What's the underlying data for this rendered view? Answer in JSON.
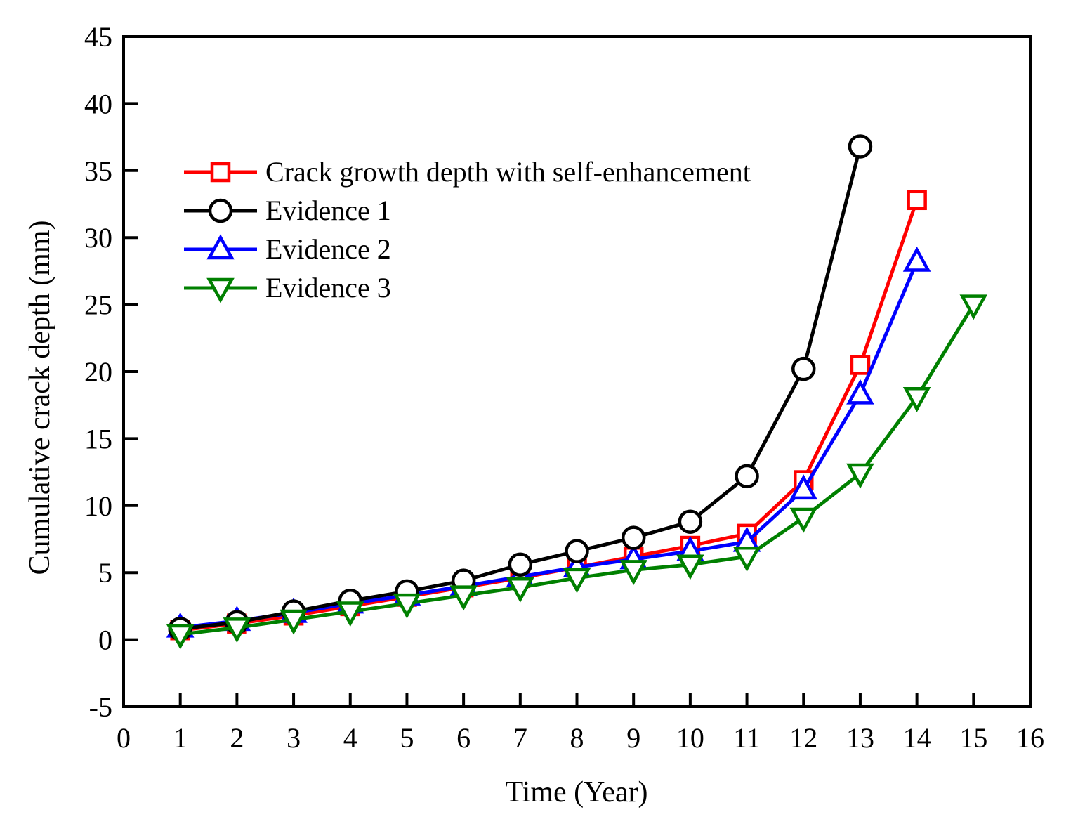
{
  "chart_data": {
    "type": "line",
    "title": "",
    "xlabel": "Time (Year)",
    "ylabel": "Cumulative crack depth (mm)",
    "xlim": [
      0,
      16
    ],
    "ylim": [
      -5,
      45
    ],
    "xticks": [
      0,
      1,
      2,
      3,
      4,
      5,
      6,
      7,
      8,
      9,
      10,
      11,
      12,
      13,
      14,
      15,
      16
    ],
    "yticks": [
      -5,
      0,
      5,
      10,
      15,
      20,
      25,
      30,
      35,
      40,
      45
    ],
    "grid": false,
    "legend_position": "upper-left",
    "series": [
      {
        "name": "Crack growth depth with self-enhancement",
        "color": "#ff0000",
        "marker": "square",
        "x": [
          1,
          2,
          3,
          4,
          5,
          6,
          7,
          8,
          9,
          10,
          11,
          12,
          13,
          14
        ],
        "y": [
          0.7,
          1.2,
          1.8,
          2.5,
          3.2,
          3.9,
          4.6,
          5.4,
          6.2,
          7.0,
          7.9,
          11.9,
          20.5,
          32.8
        ]
      },
      {
        "name": "Evidence 1",
        "color": "#000000",
        "marker": "circle",
        "x": [
          1,
          2,
          3,
          4,
          5,
          6,
          7,
          8,
          9,
          10,
          11,
          12,
          13
        ],
        "y": [
          0.8,
          1.3,
          2.1,
          2.9,
          3.6,
          4.4,
          5.6,
          6.6,
          7.6,
          8.8,
          12.2,
          20.2,
          36.8
        ]
      },
      {
        "name": "Evidence 2",
        "color": "#0000ff",
        "marker": "triangle-up",
        "x": [
          1,
          2,
          3,
          4,
          5,
          6,
          7,
          8,
          9,
          10,
          11,
          12,
          13,
          14
        ],
        "y": [
          0.9,
          1.4,
          2.0,
          2.7,
          3.3,
          4.0,
          4.7,
          5.4,
          6.0,
          6.6,
          7.3,
          11.2,
          18.3,
          28.2
        ]
      },
      {
        "name": "Evidence 3",
        "color": "#008000",
        "marker": "triangle-down",
        "x": [
          1,
          2,
          3,
          4,
          5,
          6,
          7,
          8,
          9,
          10,
          11,
          12,
          13,
          14,
          15
        ],
        "y": [
          0.4,
          0.9,
          1.5,
          2.1,
          2.7,
          3.3,
          3.9,
          4.6,
          5.2,
          5.6,
          6.2,
          9.1,
          12.4,
          18.1,
          25.0
        ]
      }
    ]
  }
}
